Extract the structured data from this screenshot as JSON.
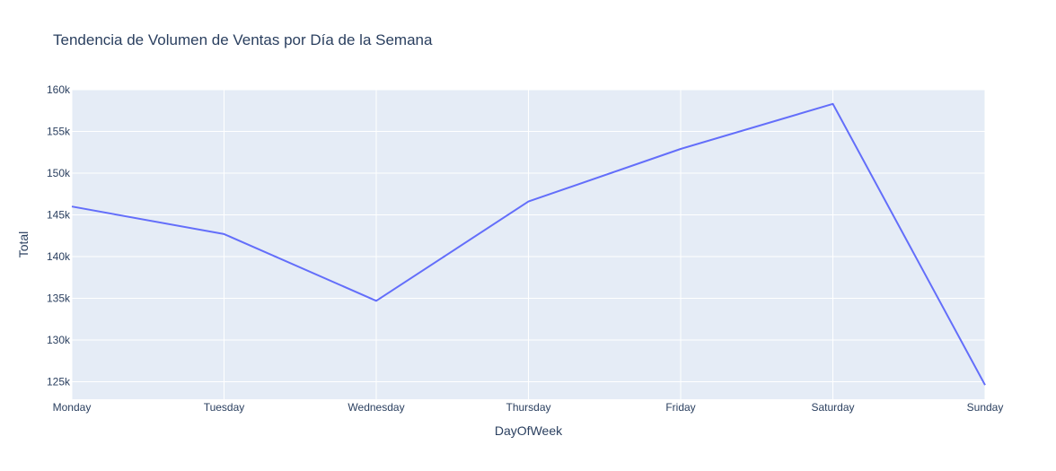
{
  "chart_data": {
    "type": "line",
    "title": "Tendencia de Volumen de Ventas por Día de la Semana",
    "xlabel": "DayOfWeek",
    "ylabel": "Total",
    "categories": [
      "Monday",
      "Tuesday",
      "Wednesday",
      "Thursday",
      "Friday",
      "Saturday",
      "Sunday"
    ],
    "series": [
      {
        "values": [
          146000,
          142700,
          134700,
          146600,
          152900,
          158300,
          124600
        ]
      }
    ],
    "ylim": [
      122900,
      160000
    ],
    "yticks": [
      125000,
      130000,
      135000,
      140000,
      145000,
      150000,
      155000,
      160000
    ],
    "ytick_labels": [
      "125k",
      "130k",
      "135k",
      "140k",
      "145k",
      "150k",
      "155k",
      "160k"
    ],
    "grid": true,
    "colors": {
      "line": "#636efa",
      "plot_bg": "#e5ecf6",
      "grid": "#ffffff",
      "text": "#2a3f5f"
    }
  }
}
